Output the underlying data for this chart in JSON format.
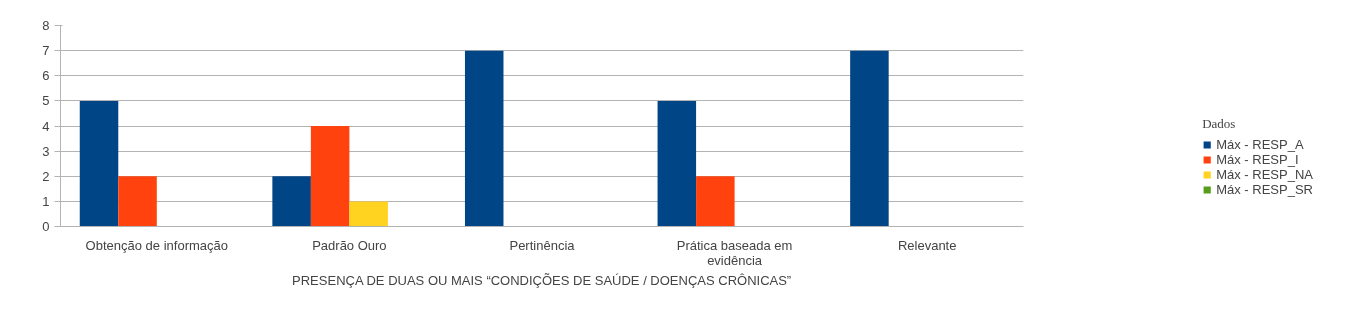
{
  "chart_data": {
    "type": "bar",
    "xlabel": "PRESENÇA DE DUAS OU MAIS “CONDIÇÕES DE SAÚDE / DOENÇAS CRÔNICAS”",
    "legend_title": "Dados",
    "categories": [
      "Obtenção de informação",
      "Padrão Ouro",
      "Pertinência",
      "Prática baseada em evidência",
      "Relevante"
    ],
    "series": [
      {
        "name": "Máx - RESP_A",
        "color": "#004586",
        "values": [
          5,
          2,
          7,
          5,
          7
        ]
      },
      {
        "name": "Máx - RESP_I",
        "color": "#ff420e",
        "values": [
          2,
          4,
          null,
          2,
          null
        ]
      },
      {
        "name": "Máx - RESP_NA",
        "color": "#ffd320",
        "values": [
          null,
          1,
          null,
          null,
          null
        ]
      },
      {
        "name": "Máx - RESP_SR",
        "color": "#579d1c",
        "values": [
          null,
          null,
          null,
          null,
          null
        ]
      }
    ],
    "ylim": [
      0,
      8
    ],
    "yticks": [
      0,
      1,
      2,
      3,
      4,
      5,
      6,
      7,
      8
    ],
    "grid": "y",
    "legend": "bottom right"
  }
}
